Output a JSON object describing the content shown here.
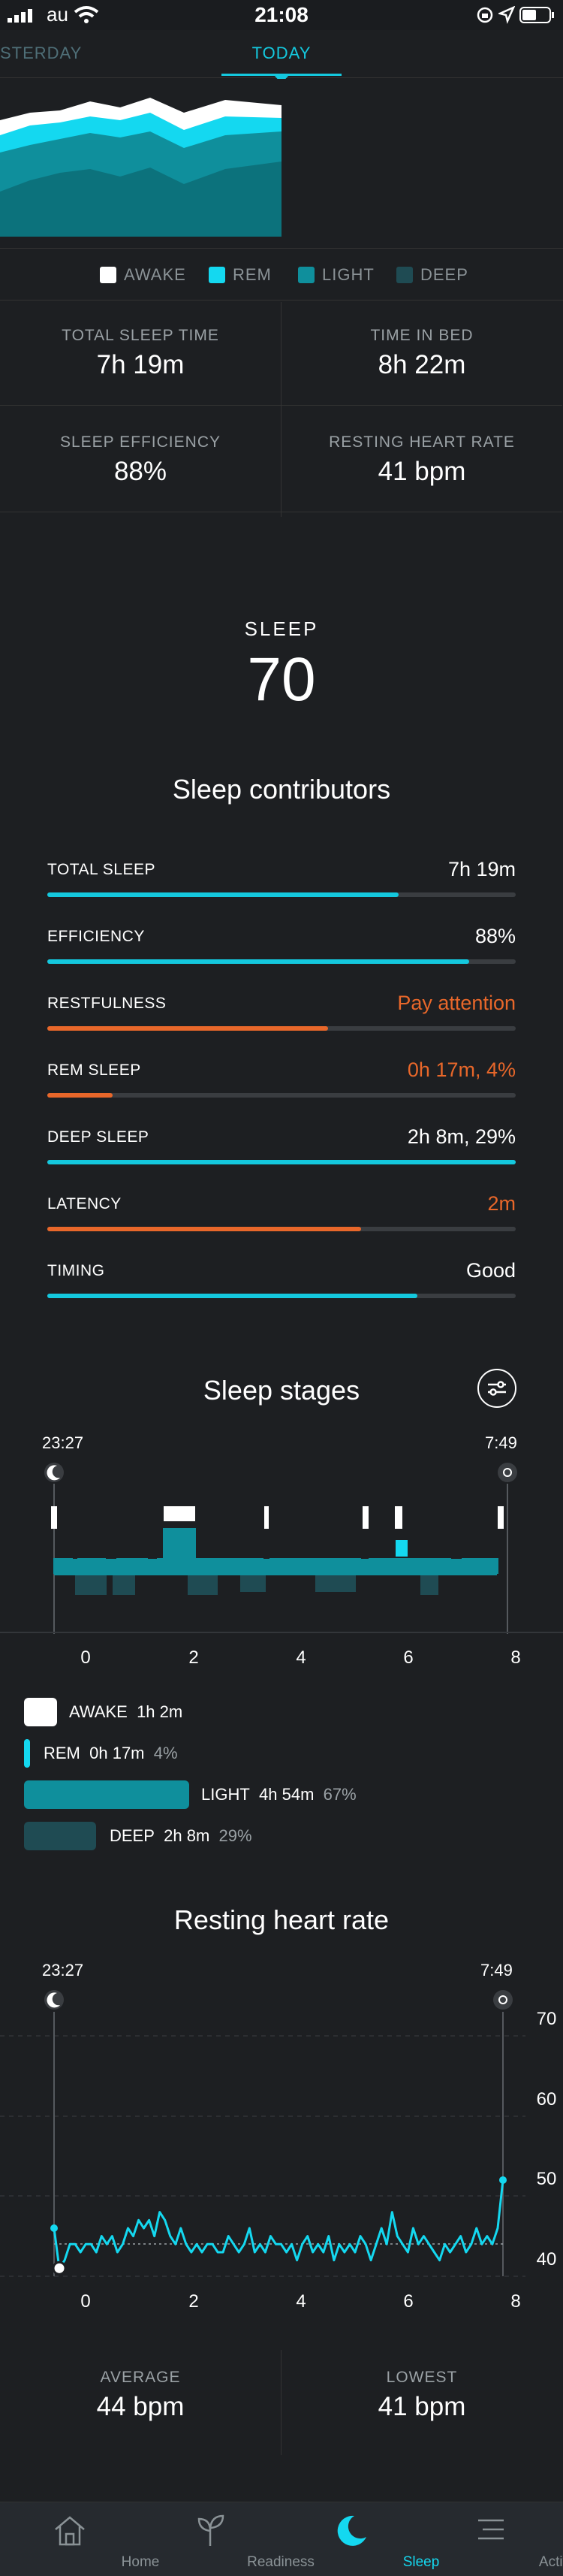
{
  "status_bar": {
    "carrier": "au",
    "time": "21:08"
  },
  "tabs": {
    "yesterday": "STERDAY",
    "today": "TODAY"
  },
  "legend": {
    "awake": "AWAKE",
    "rem": "REM",
    "light": "LIGHT",
    "deep": "DEEP"
  },
  "stats": {
    "total_sleep_time": {
      "label": "TOTAL SLEEP TIME",
      "value": "7h 19m"
    },
    "time_in_bed": {
      "label": "TIME IN BED",
      "value": "8h 22m"
    },
    "sleep_efficiency": {
      "label": "SLEEP EFFICIENCY",
      "value": "88%"
    },
    "resting_heart_rate": {
      "label": "RESTING HEART RATE",
      "value": "41 bpm"
    }
  },
  "score": {
    "label": "SLEEP",
    "value": "70"
  },
  "contributors": {
    "title": "Sleep contributors",
    "items": [
      {
        "name": "TOTAL SLEEP",
        "value": "7h 19m",
        "level": 0.75,
        "status": "ok"
      },
      {
        "name": "EFFICIENCY",
        "value": "88%",
        "level": 0.9,
        "status": "ok"
      },
      {
        "name": "RESTFULNESS",
        "value": "Pay attention",
        "level": 0.6,
        "status": "warn"
      },
      {
        "name": "REM SLEEP",
        "value": "0h 17m, 4%",
        "level": 0.14,
        "status": "warn"
      },
      {
        "name": "DEEP SLEEP",
        "value": "2h 8m, 29%",
        "level": 1.0,
        "status": "ok"
      },
      {
        "name": "LATENCY",
        "value": "2m",
        "level": 0.67,
        "status": "warn"
      },
      {
        "name": "TIMING",
        "value": "Good",
        "level": 0.79,
        "status": "ok"
      }
    ]
  },
  "sleep_stages": {
    "title": "Sleep stages",
    "start_time": "23:27",
    "end_time": "7:49",
    "axis_ticks": [
      "0",
      "2",
      "4",
      "6",
      "8"
    ],
    "legend": [
      {
        "name": "AWAKE",
        "duration": "1h 2m",
        "pct": ""
      },
      {
        "name": "REM",
        "duration": "0h 17m",
        "pct": "4%"
      },
      {
        "name": "LIGHT",
        "duration": "4h 54m",
        "pct": "67%"
      },
      {
        "name": "DEEP",
        "duration": "2h 8m",
        "pct": "29%"
      }
    ]
  },
  "resting_hr": {
    "title": "Resting heart rate",
    "start_time": "23:27",
    "end_time": "7:49",
    "y_ticks": [
      "70",
      "60",
      "50",
      "40"
    ],
    "axis_ticks": [
      "0",
      "2",
      "4",
      "6",
      "8"
    ],
    "average": {
      "label": "AVERAGE",
      "value": "44 bpm"
    },
    "lowest": {
      "label": "LOWEST",
      "value": "41 bpm"
    }
  },
  "colors": {
    "awake": "#ffffff",
    "rem": "#14d8f0",
    "light": "#0f8f9c",
    "deep": "#1f4b53",
    "accent": "#14c8de",
    "warn": "#e8672a"
  },
  "chart_data": {
    "type": "line",
    "title": "Resting heart rate",
    "xlabel": "",
    "ylabel": "",
    "x_ticks": [
      0,
      2,
      4,
      6,
      8
    ],
    "y_ticks": [
      40,
      50,
      60,
      70
    ],
    "ylim": [
      40,
      72
    ],
    "series": [
      {
        "values": [
          46,
          41,
          42,
          44,
          44,
          43,
          44,
          44,
          43,
          45,
          44,
          45,
          43,
          44,
          46,
          45,
          47,
          46,
          47,
          45,
          48,
          47,
          45,
          44,
          46,
          44,
          43,
          44,
          43,
          44,
          44,
          43,
          43,
          45,
          44,
          43,
          44,
          46,
          43,
          44,
          43,
          45,
          44,
          44,
          43,
          44,
          42,
          44,
          45,
          43,
          44,
          43,
          45,
          42,
          44,
          43,
          44,
          43,
          45,
          44,
          42,
          44,
          46,
          44,
          48,
          45,
          44,
          43,
          46,
          44,
          45,
          44,
          43,
          42,
          44,
          43,
          44,
          45,
          43,
          44,
          46,
          44,
          45,
          44,
          46,
          52
        ]
      }
    ]
  }
}
